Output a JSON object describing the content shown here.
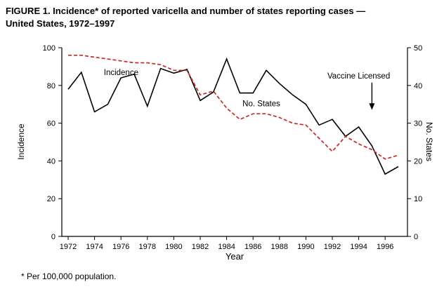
{
  "figure": {
    "title_line1": "FIGURE 1. Incidence* of reported varicella and number of states reporting cases —",
    "title_line2": "United States, 1972–1997",
    "footnote": "* Per 100,000 population."
  },
  "axes": {
    "left_label": "Incidence",
    "right_label": "No. States",
    "x_label": "Year"
  },
  "chart_data": {
    "type": "line",
    "title": "FIGURE 1. Incidence* of reported varicella and number of states reporting cases — United States, 1972–1997",
    "xlabel": "Year",
    "ylabel_left": "Incidence",
    "ylabel_right": "No. States",
    "ylim_left": [
      0,
      100
    ],
    "ylim_right": [
      0,
      50
    ],
    "yticks_left": [
      0,
      20,
      40,
      60,
      80,
      100
    ],
    "yticks_right": [
      0,
      10,
      20,
      30,
      40,
      50
    ],
    "grid": false,
    "legend": "inline-labels",
    "x": [
      1972,
      1973,
      1974,
      1975,
      1976,
      1977,
      1978,
      1979,
      1980,
      1981,
      1982,
      1983,
      1984,
      1985,
      1986,
      1987,
      1988,
      1989,
      1990,
      1991,
      1992,
      1993,
      1994,
      1995,
      1996,
      1997
    ],
    "x_ticks": [
      1972,
      1974,
      1976,
      1978,
      1980,
      1982,
      1984,
      1986,
      1988,
      1990,
      1992,
      1994,
      1996
    ],
    "series": [
      {
        "name": "Incidence",
        "data_name": "incidence-line",
        "axis": "left",
        "color": "#000000",
        "dash": "",
        "width": 1.6,
        "values": [
          78,
          87,
          66,
          70,
          84,
          86,
          69,
          89,
          86.5,
          88.5,
          72,
          76.5,
          94,
          76,
          76,
          88,
          81,
          75,
          70,
          59,
          62,
          53,
          58,
          48,
          33,
          37
        ],
        "label_pos": {
          "year": 1974.7,
          "value": 85.5
        }
      },
      {
        "name": "No. States",
        "data_name": "no-states-line",
        "axis": "right",
        "color": "#cc2a21",
        "dash": "5 3",
        "width": 1.7,
        "values": [
          48,
          48,
          47.5,
          47,
          46.5,
          46,
          46,
          45.5,
          44,
          44,
          37.5,
          38.5,
          34,
          31,
          32.5,
          32.5,
          31.5,
          30,
          29.5,
          26,
          22.5,
          26.5,
          24.5,
          23,
          20.5,
          21.5
        ],
        "label_pos": {
          "year": 1985.2,
          "value": 69
        }
      }
    ],
    "annotation": {
      "text": "Vaccine Licensed",
      "x_year": 1994,
      "text_value": 83.6,
      "arrow_year": 1995,
      "arrow_from_value": 81.5,
      "arrow_to_value": 67
    }
  }
}
